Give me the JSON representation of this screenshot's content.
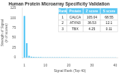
{
  "chart_data": {
    "type": "bar",
    "title": "Human Protein Microarray Specificity Validation",
    "xlabel": "Signal Rank (Top 40)",
    "ylabel": "Strength of Signal (# of scores)",
    "x": [
      1,
      2,
      3,
      4,
      5,
      6,
      7,
      8,
      9,
      10,
      11,
      12,
      13,
      14,
      15,
      16,
      17,
      18,
      19,
      20,
      21,
      22,
      23,
      24,
      25,
      26,
      27,
      28,
      29,
      30,
      31,
      32,
      33,
      34,
      35,
      36,
      37,
      38,
      39,
      40
    ],
    "values": [
      105.04,
      36.53,
      4.25,
      2.1,
      1.8,
      1.5,
      1.3,
      1.15,
      1.05,
      0.98,
      0.92,
      0.87,
      0.83,
      0.8,
      0.77,
      0.74,
      0.72,
      0.7,
      0.68,
      0.66,
      0.64,
      0.62,
      0.61,
      0.59,
      0.58,
      0.57,
      0.56,
      0.55,
      0.54,
      0.53,
      0.52,
      0.51,
      0.5,
      0.49,
      0.48,
      0.47,
      0.46,
      0.45,
      0.44,
      0.43
    ],
    "color": "#5bc8f5",
    "xlim": [
      0,
      41
    ],
    "xticks": [
      1,
      10,
      20,
      30,
      40
    ],
    "ylim": [
      0,
      125
    ],
    "yticks": [
      0,
      25,
      50,
      75,
      100,
      125
    ],
    "grid": false,
    "table": {
      "header": [
        "Rank",
        "Protein",
        "Z score",
        "S score"
      ],
      "rows": [
        [
          "1",
          "CALCA",
          "105.04",
          "68.55"
        ],
        [
          "2",
          "ATXN3",
          "36.53",
          "12.1"
        ],
        [
          "3",
          "TBX",
          "4.25",
          "0.11"
        ]
      ],
      "color": "#5bc8f5"
    }
  }
}
